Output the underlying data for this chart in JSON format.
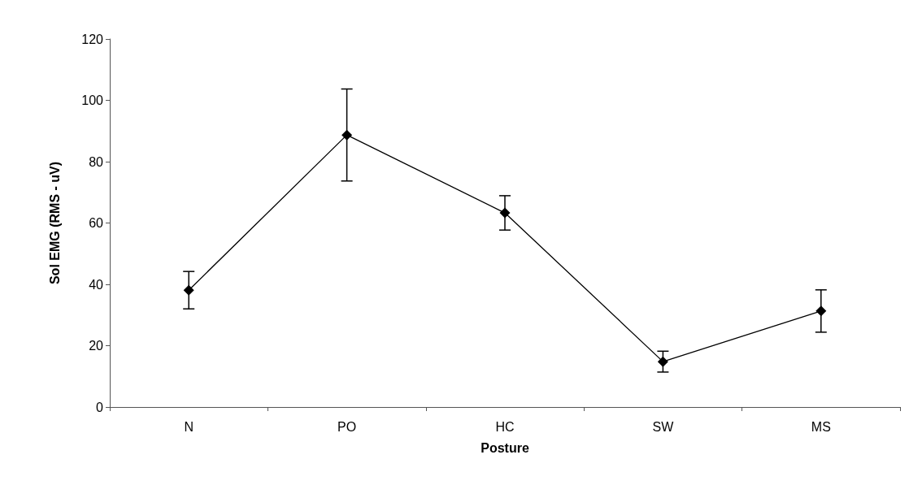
{
  "chart_data": {
    "type": "line",
    "xlabel": "Posture",
    "ylabel": "Sol EMG (RMS - uV)",
    "categories": [
      "N",
      "PO",
      "HC",
      "SW",
      "MS"
    ],
    "series": [
      {
        "color": "#000000",
        "values": [
          38.1,
          88.7,
          63.3,
          14.8,
          31.3
        ],
        "errors": [
          6.1,
          15,
          5.6,
          3.4,
          6.9
        ]
      }
    ],
    "ylim": [
      0,
      120
    ],
    "yticks": [
      0,
      20,
      40,
      60,
      80,
      100,
      120
    ],
    "grid": false,
    "marker": "diamond",
    "line_style": "solid"
  }
}
